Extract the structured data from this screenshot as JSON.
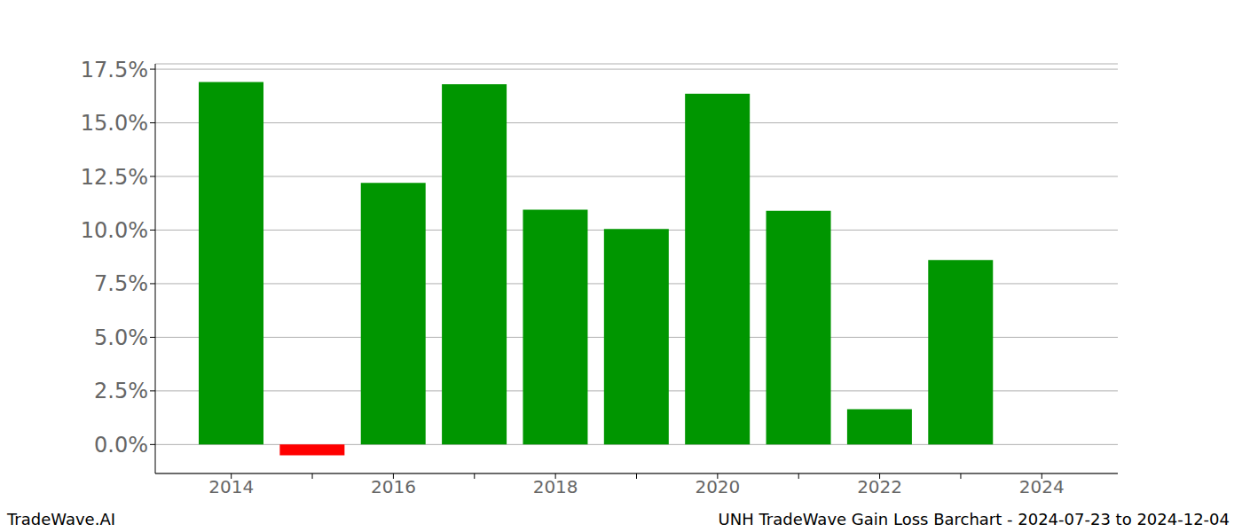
{
  "chart_data": {
    "type": "bar",
    "title": "UNH TradeWave Gain Loss Barchart - 2024-07-23 to 2024-12-04",
    "annotations": [
      "TradeWave.AI"
    ],
    "categories": [
      "2014",
      null,
      "2016",
      null,
      "2018",
      null,
      "2020",
      null,
      "2022",
      null,
      "2024"
    ],
    "values": [
      16.9,
      -0.5,
      12.2,
      16.8,
      10.95,
      10.05,
      16.35,
      10.9,
      1.65,
      8.6,
      null
    ],
    "colors": [
      "#009600",
      "#ff0000",
      "#009600",
      "#009600",
      "#009600",
      "#009600",
      "#009600",
      "#009600",
      "#009600",
      "#009600",
      "#009600"
    ],
    "ylim": [
      -1.35,
      17.75
    ],
    "yticks": [
      {
        "value": 0,
        "label": "0.0%"
      },
      {
        "value": 2.5,
        "label": "2.5%"
      },
      {
        "value": 5,
        "label": "5.0%"
      },
      {
        "value": 7.5,
        "label": "7.5%"
      },
      {
        "value": 10,
        "label": "10.0%"
      },
      {
        "value": 12.5,
        "label": "12.5%"
      },
      {
        "value": 15,
        "label": "15.0%"
      },
      {
        "value": 17.5,
        "label": "17.5%"
      }
    ],
    "grid": true
  }
}
